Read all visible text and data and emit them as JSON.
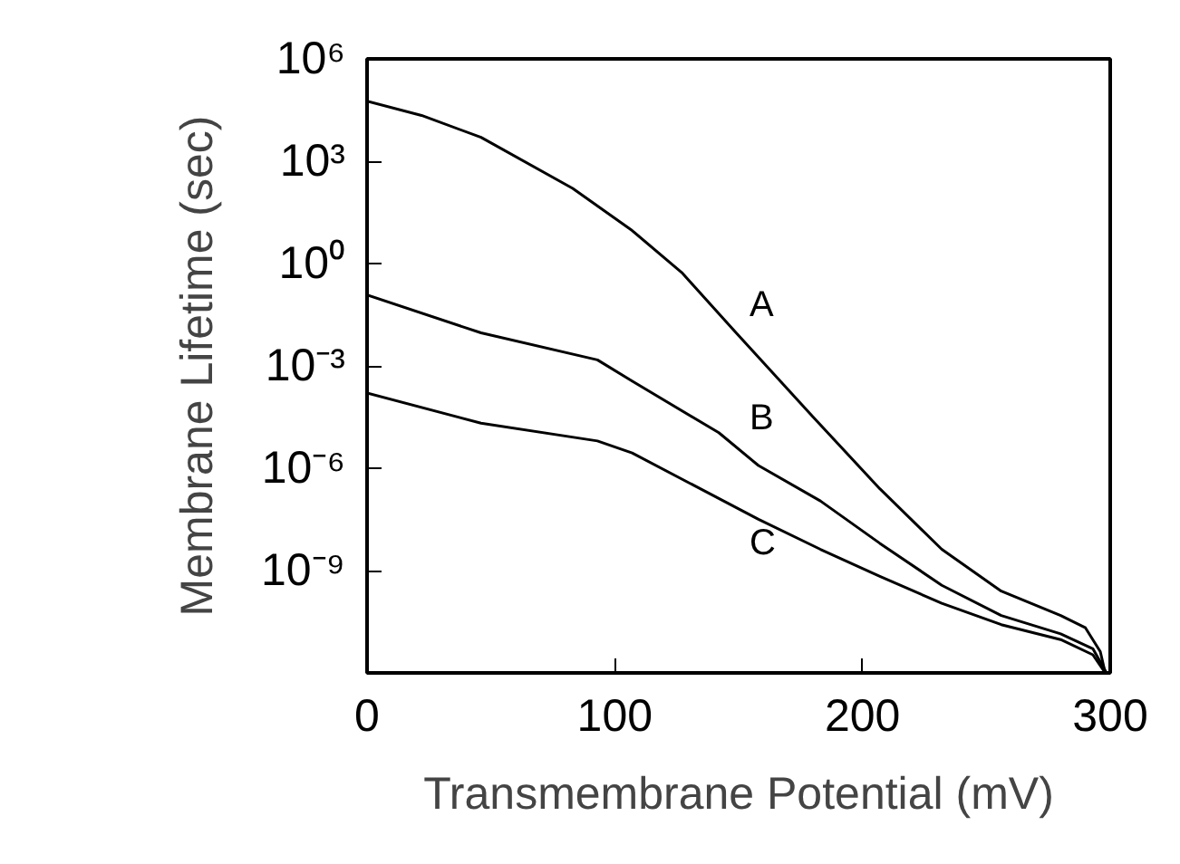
{
  "chart_data": {
    "type": "line",
    "xlabel": "Transmembrane Potential (mV)",
    "ylabel": "Membrane Lifetime (sec)",
    "log": "y",
    "grid": false,
    "marker": "none",
    "line_style": "solid",
    "xlim": [
      0,
      300
    ],
    "xticks": [
      0,
      100,
      200,
      300
    ],
    "ylim": [
      1e-12,
      1000000.0
    ],
    "yticks": [
      {
        "value": 1000000.0,
        "label": "10⁶"
      },
      {
        "value": 1000.0,
        "label": "10³"
      },
      {
        "value": 1,
        "label": "10⁰"
      },
      {
        "value": 0.001,
        "label": "10⁻³"
      },
      {
        "value": 1e-06,
        "label": "10⁻⁶"
      },
      {
        "value": 1e-09,
        "label": "10⁻⁹"
      }
    ],
    "series": [
      {
        "name": "A",
        "color": "#000000",
        "x": [
          0,
          22,
          46,
          83,
          107,
          127,
          149,
          180,
          207,
          232,
          256,
          280,
          290,
          296,
          298
        ],
        "values": [
          58000.0,
          22000.0,
          5000.0,
          160.0,
          9.3,
          0.55,
          0.0093,
          3.2e-05,
          2.5e-07,
          4.2e-09,
          2.5e-10,
          4.8e-11,
          2.1e-11,
          4.2e-12,
          1e-12
        ]
      },
      {
        "name": "B",
        "color": "#000000",
        "x": [
          0,
          46,
          93,
          107,
          142,
          158,
          183,
          207,
          232,
          256,
          280,
          293,
          298.5
        ],
        "values": [
          0.12,
          0.0093,
          0.0015,
          0.00036,
          1.1e-05,
          1.2e-06,
          1.1e-07,
          6.3e-09,
          3.7e-10,
          4.8e-11,
          1.4e-11,
          5.1e-12,
          1e-12
        ]
      },
      {
        "name": "C",
        "color": "#000000",
        "x": [
          0,
          46,
          93,
          107,
          158,
          183,
          207,
          232,
          256,
          280,
          293,
          298
        ],
        "values": [
          0.00016,
          2.1e-05,
          6.3e-06,
          2.8e-06,
          3.2e-08,
          4.2e-09,
          6.8e-10,
          1.1e-10,
          2.6e-11,
          9.5e-12,
          3.4e-12,
          1e-12
        ]
      }
    ]
  }
}
